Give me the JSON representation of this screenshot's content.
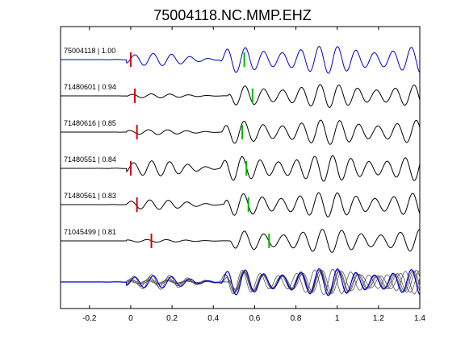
{
  "chart_data": {
    "type": "line",
    "title": "75004118.NC.MMP.EHZ",
    "xlabel": "",
    "ylabel": "",
    "xlim": [
      -0.34,
      1.4
    ],
    "xticks": [
      -0.2,
      0,
      0.2,
      0.4,
      0.6,
      0.8,
      1,
      1.2,
      1.4
    ],
    "xtick_labels": [
      "-0.2",
      "0",
      "0.2",
      "0.4",
      "0.6",
      "0.8",
      "1",
      "1.2",
      "1.4"
    ],
    "grid": false,
    "legend": false,
    "colors": {
      "master": "#0000cc",
      "trace": "#000000",
      "overlay": "#555555",
      "p_pick": "#dd0000",
      "s_pick": "#00bb00"
    },
    "series": [
      {
        "label": "75004118 | 1.00",
        "id": "75004118",
        "coef": 1.0,
        "p_pick": 0.0,
        "s_pick": 0.55,
        "onset": 0.43,
        "pre_amp": 0.45,
        "amp": 1.0,
        "freq": 11.2,
        "phase": 0.2,
        "master": true
      },
      {
        "label": "71480601 | 0.94",
        "id": "71480601",
        "coef": 0.94,
        "p_pick": 0.02,
        "s_pick": 0.59,
        "onset": 0.47,
        "pre_amp": 0.15,
        "amp": 0.85,
        "freq": 11.0,
        "phase": 1.0,
        "master": false
      },
      {
        "label": "71480616 | 0.85",
        "id": "71480616",
        "coef": 0.85,
        "p_pick": 0.03,
        "s_pick": 0.54,
        "onset": 0.44,
        "pre_amp": 0.18,
        "amp": 0.9,
        "freq": 10.8,
        "phase": 2.0,
        "master": false
      },
      {
        "label": "71480551 | 0.84",
        "id": "71480551",
        "coef": 0.84,
        "p_pick": 0.0,
        "s_pick": 0.56,
        "onset": 0.43,
        "pre_amp": 0.55,
        "amp": 0.95,
        "freq": 11.4,
        "phase": 0.6,
        "master": false
      },
      {
        "label": "71480561 | 0.83",
        "id": "71480561",
        "coef": 0.83,
        "p_pick": 0.03,
        "s_pick": 0.57,
        "onset": 0.45,
        "pre_amp": 0.35,
        "amp": 0.9,
        "freq": 11.0,
        "phase": 1.5,
        "master": false
      },
      {
        "label": "71045499 | 0.81",
        "id": "71045499",
        "coef": 0.81,
        "p_pick": 0.1,
        "s_pick": 0.67,
        "onset": 0.48,
        "pre_amp": 0.1,
        "amp": 0.85,
        "freq": 10.6,
        "phase": 2.6,
        "master": false
      }
    ]
  }
}
